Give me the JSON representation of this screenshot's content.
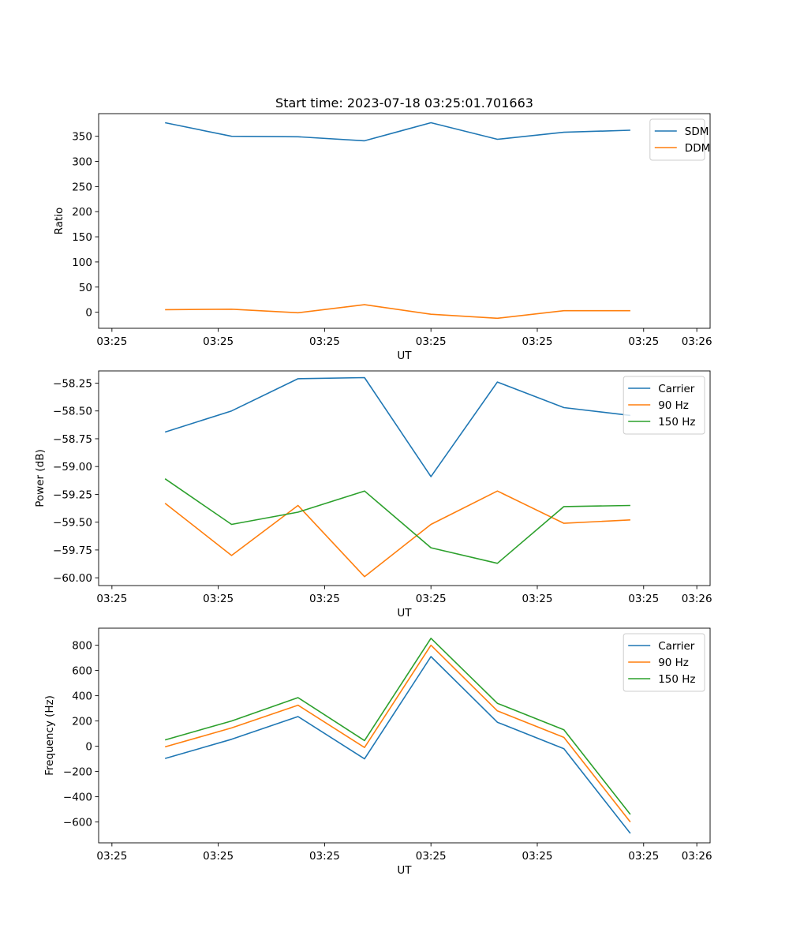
{
  "figure_title": "Start time: 2023-07-18 03:25:01.701663",
  "colors": {
    "blue": "#1f77b4",
    "orange": "#ff7f0e",
    "green": "#2ca02c"
  },
  "chart_data": [
    {
      "type": "line",
      "title": "Start time: 2023-07-18 03:25:01.701663",
      "xlabel": "UT",
      "ylabel": "Ratio",
      "x": [
        1,
        2,
        3,
        4,
        5,
        6,
        7,
        8
      ],
      "xlim": [
        0,
        9.2
      ],
      "xticks": [
        0.2,
        1.8,
        3.4,
        5.0,
        6.6,
        8.2,
        9.0
      ],
      "xtick_labels": [
        "03:25",
        "03:25",
        "03:25",
        "03:25",
        "03:25",
        "03:25",
        "03:26"
      ],
      "ylim": [
        -32,
        395
      ],
      "yticks": [
        0,
        50,
        100,
        150,
        200,
        250,
        300,
        350
      ],
      "ytick_labels": [
        "0",
        "50",
        "100",
        "150",
        "200",
        "250",
        "300",
        "350"
      ],
      "legend": "top-right",
      "series": [
        {
          "name": "SDM",
          "color": "#1f77b4",
          "values": [
            377,
            350,
            349,
            341,
            377,
            344,
            358,
            362
          ]
        },
        {
          "name": "DDM",
          "color": "#ff7f0e",
          "values": [
            5,
            6,
            -1,
            15,
            -4,
            -12,
            3,
            3
          ]
        }
      ]
    },
    {
      "type": "line",
      "title": "",
      "xlabel": "UT",
      "ylabel": "Power (dB)",
      "x": [
        1,
        2,
        3,
        4,
        5,
        6,
        7,
        8
      ],
      "xlim": [
        0,
        9.2
      ],
      "xticks": [
        0.2,
        1.8,
        3.4,
        5.0,
        6.6,
        8.2,
        9.0
      ],
      "xtick_labels": [
        "03:25",
        "03:25",
        "03:25",
        "03:25",
        "03:25",
        "03:25",
        "03:26"
      ],
      "ylim": [
        -60.07,
        -58.14
      ],
      "yticks": [
        -60.0,
        -59.75,
        -59.5,
        -59.25,
        -59.0,
        -58.75,
        -58.5,
        -58.25
      ],
      "ytick_labels": [
        "−60.00",
        "−59.75",
        "−59.50",
        "−59.25",
        "−59.00",
        "−58.75",
        "−58.50",
        "−58.25"
      ],
      "legend": "top-right",
      "series": [
        {
          "name": "Carrier",
          "color": "#1f77b4",
          "values": [
            -58.69,
            -58.5,
            -58.21,
            -58.2,
            -59.09,
            -58.24,
            -58.47,
            -58.54
          ]
        },
        {
          "name": "90 Hz",
          "color": "#ff7f0e",
          "values": [
            -59.33,
            -59.8,
            -59.35,
            -59.99,
            -59.52,
            -59.22,
            -59.51,
            -59.48
          ]
        },
        {
          "name": "150 Hz",
          "color": "#2ca02c",
          "values": [
            -59.11,
            -59.52,
            -59.41,
            -59.22,
            -59.73,
            -59.87,
            -59.36,
            -59.35
          ]
        }
      ]
    },
    {
      "type": "line",
      "title": "",
      "xlabel": "UT",
      "ylabel": "Frequency (Hz)",
      "x": [
        1,
        2,
        3,
        4,
        5,
        6,
        7,
        8
      ],
      "xlim": [
        0,
        9.2
      ],
      "xticks": [
        0.2,
        1.8,
        3.4,
        5.0,
        6.6,
        8.2,
        9.0
      ],
      "xtick_labels": [
        "03:25",
        "03:25",
        "03:25",
        "03:25",
        "03:25",
        "03:25",
        "03:26"
      ],
      "ylim": [
        -765,
        935
      ],
      "yticks": [
        -600,
        -400,
        -200,
        0,
        200,
        400,
        600,
        800
      ],
      "ytick_labels": [
        "−600",
        "−400",
        "−200",
        "0",
        "200",
        "400",
        "600",
        "800"
      ],
      "legend": "top-right",
      "series": [
        {
          "name": "Carrier",
          "color": "#1f77b4",
          "values": [
            -97,
            55,
            235,
            -100,
            710,
            190,
            -20,
            -690
          ]
        },
        {
          "name": "90 Hz",
          "color": "#ff7f0e",
          "values": [
            -5,
            145,
            325,
            -10,
            800,
            280,
            70,
            -600
          ]
        },
        {
          "name": "150 Hz",
          "color": "#2ca02c",
          "values": [
            50,
            200,
            385,
            45,
            855,
            340,
            130,
            -540
          ]
        }
      ]
    }
  ]
}
